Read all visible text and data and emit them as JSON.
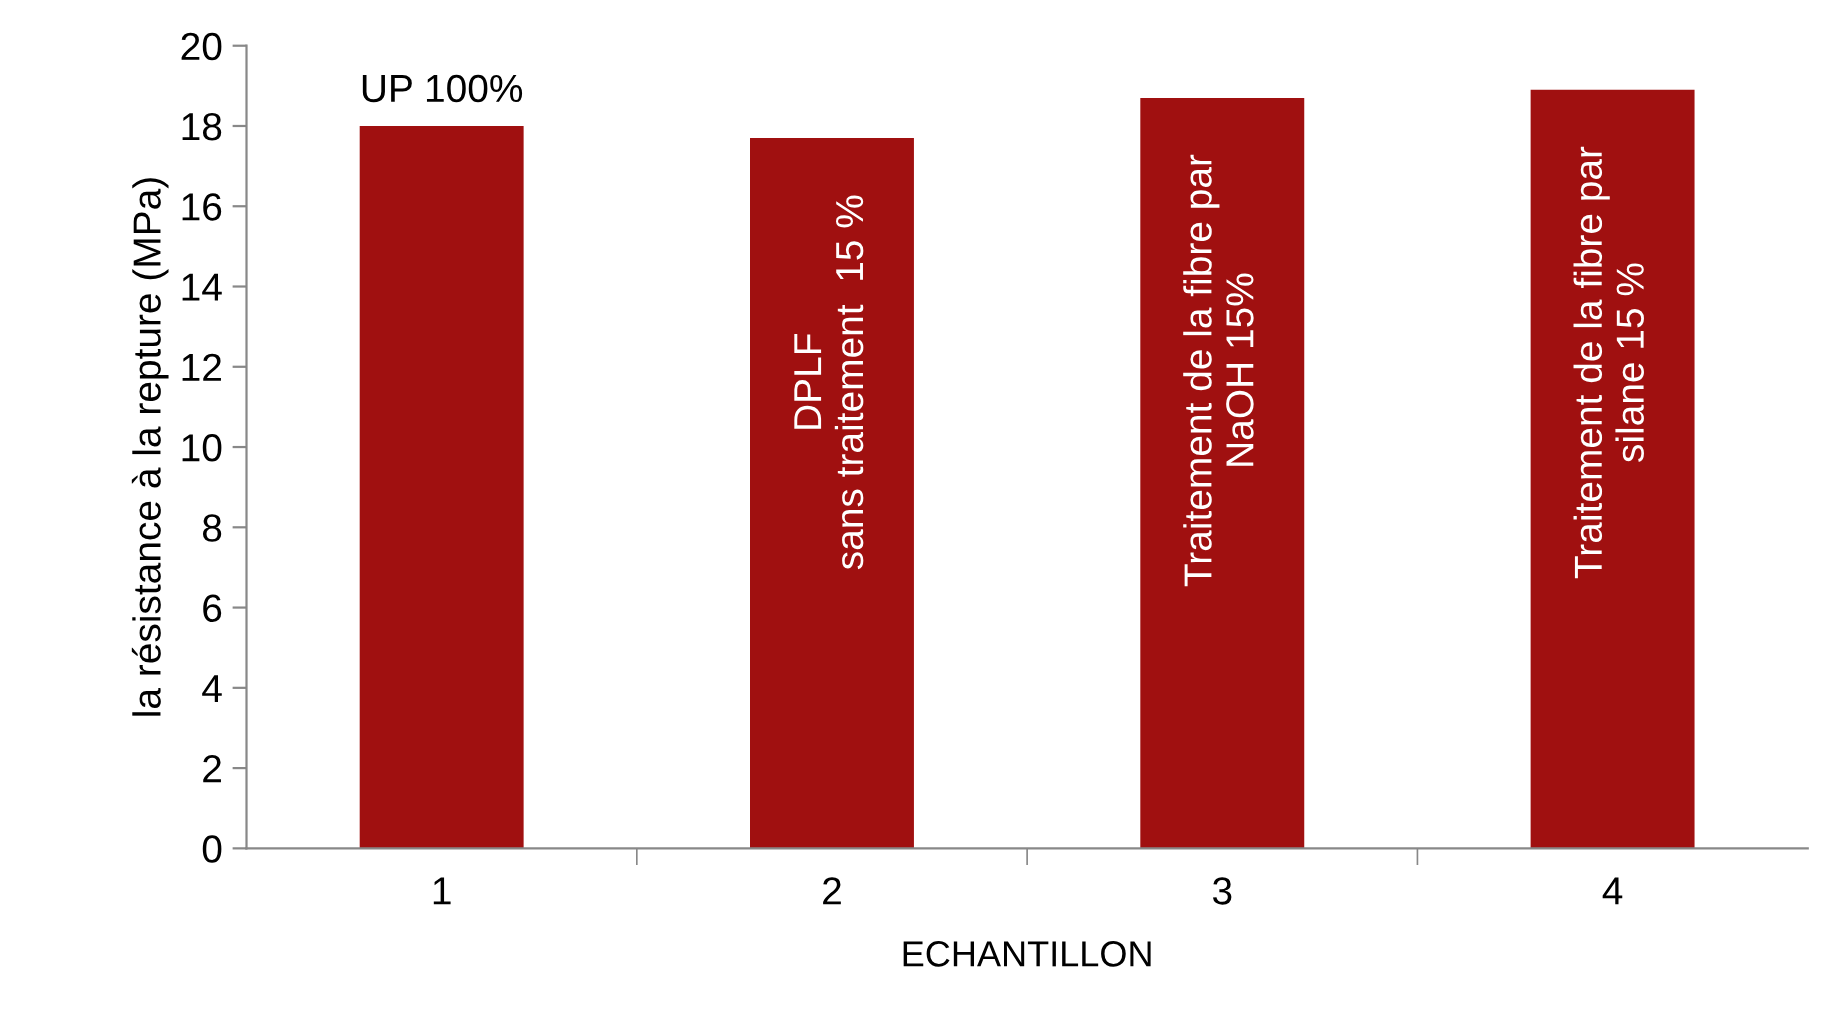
{
  "chart_data": {
    "type": "bar",
    "xlabel": "ECHANTILLON",
    "ylabel": "la résistance à la repture (MPa)",
    "categories": [
      "1",
      "2",
      "3",
      "4"
    ],
    "values": [
      18.0,
      17.7,
      18.7,
      18.9
    ],
    "color": "#a01010",
    "ylim": [
      0,
      20
    ],
    "yticks": [
      0,
      2,
      4,
      6,
      8,
      10,
      12,
      14,
      16,
      18,
      20
    ],
    "grid": false,
    "annotations": [
      {
        "text": "UP 100%",
        "x": "1",
        "y": 18.0
      },
      {
        "text": "DPLF\nsans traitement  15 %",
        "x": "2",
        "y": 17.7
      },
      {
        "text": "Traitement de la fibre par\nNaOH 15%",
        "x": "3",
        "y": 18.7
      },
      {
        "text": "Traitement de la fibre par\nsilane 15 %",
        "x": "4",
        "y": 18.9
      }
    ]
  }
}
